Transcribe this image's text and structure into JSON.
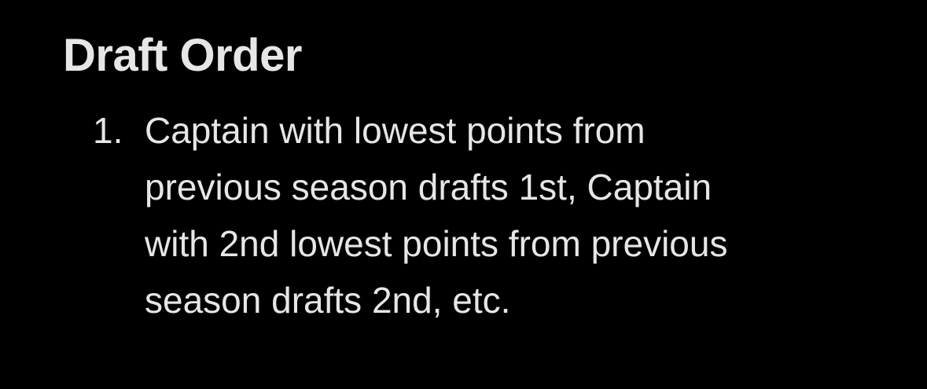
{
  "section": {
    "title": "Draft Order",
    "items": [
      {
        "marker": "1.",
        "lines": [
          "Captain with lowest points from",
          "previous season drafts 1st, Captain",
          "with 2nd lowest points from previous",
          "season drafts 2nd, etc."
        ]
      }
    ]
  },
  "colors": {
    "background": "#000000",
    "text": "#e6e6e6"
  }
}
